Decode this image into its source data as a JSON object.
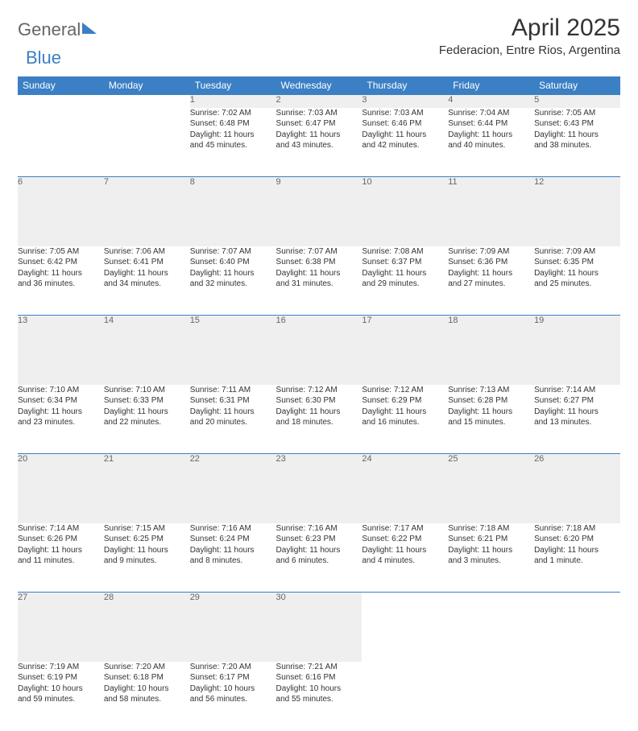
{
  "brand": {
    "part1": "General",
    "part2": "Blue"
  },
  "title": "April 2025",
  "location": "Federacion, Entre Rios, Argentina",
  "colors": {
    "header_bg": "#3b7fc4",
    "header_text": "#ffffff",
    "daynum_bg": "#efefef",
    "daynum_text": "#666666",
    "body_text": "#333333",
    "border": "#3b7fc4"
  },
  "fonts": {
    "title_size_pt": 22,
    "location_size_pt": 12,
    "dayhead_size_pt": 9,
    "cell_size_pt": 8
  },
  "day_headers": [
    "Sunday",
    "Monday",
    "Tuesday",
    "Wednesday",
    "Thursday",
    "Friday",
    "Saturday"
  ],
  "weeks": [
    [
      null,
      null,
      {
        "n": "1",
        "sr": "Sunrise: 7:02 AM",
        "ss": "Sunset: 6:48 PM",
        "dl1": "Daylight: 11 hours",
        "dl2": "and 45 minutes."
      },
      {
        "n": "2",
        "sr": "Sunrise: 7:03 AM",
        "ss": "Sunset: 6:47 PM",
        "dl1": "Daylight: 11 hours",
        "dl2": "and 43 minutes."
      },
      {
        "n": "3",
        "sr": "Sunrise: 7:03 AM",
        "ss": "Sunset: 6:46 PM",
        "dl1": "Daylight: 11 hours",
        "dl2": "and 42 minutes."
      },
      {
        "n": "4",
        "sr": "Sunrise: 7:04 AM",
        "ss": "Sunset: 6:44 PM",
        "dl1": "Daylight: 11 hours",
        "dl2": "and 40 minutes."
      },
      {
        "n": "5",
        "sr": "Sunrise: 7:05 AM",
        "ss": "Sunset: 6:43 PM",
        "dl1": "Daylight: 11 hours",
        "dl2": "and 38 minutes."
      }
    ],
    [
      {
        "n": "6",
        "sr": "Sunrise: 7:05 AM",
        "ss": "Sunset: 6:42 PM",
        "dl1": "Daylight: 11 hours",
        "dl2": "and 36 minutes."
      },
      {
        "n": "7",
        "sr": "Sunrise: 7:06 AM",
        "ss": "Sunset: 6:41 PM",
        "dl1": "Daylight: 11 hours",
        "dl2": "and 34 minutes."
      },
      {
        "n": "8",
        "sr": "Sunrise: 7:07 AM",
        "ss": "Sunset: 6:40 PM",
        "dl1": "Daylight: 11 hours",
        "dl2": "and 32 minutes."
      },
      {
        "n": "9",
        "sr": "Sunrise: 7:07 AM",
        "ss": "Sunset: 6:38 PM",
        "dl1": "Daylight: 11 hours",
        "dl2": "and 31 minutes."
      },
      {
        "n": "10",
        "sr": "Sunrise: 7:08 AM",
        "ss": "Sunset: 6:37 PM",
        "dl1": "Daylight: 11 hours",
        "dl2": "and 29 minutes."
      },
      {
        "n": "11",
        "sr": "Sunrise: 7:09 AM",
        "ss": "Sunset: 6:36 PM",
        "dl1": "Daylight: 11 hours",
        "dl2": "and 27 minutes."
      },
      {
        "n": "12",
        "sr": "Sunrise: 7:09 AM",
        "ss": "Sunset: 6:35 PM",
        "dl1": "Daylight: 11 hours",
        "dl2": "and 25 minutes."
      }
    ],
    [
      {
        "n": "13",
        "sr": "Sunrise: 7:10 AM",
        "ss": "Sunset: 6:34 PM",
        "dl1": "Daylight: 11 hours",
        "dl2": "and 23 minutes."
      },
      {
        "n": "14",
        "sr": "Sunrise: 7:10 AM",
        "ss": "Sunset: 6:33 PM",
        "dl1": "Daylight: 11 hours",
        "dl2": "and 22 minutes."
      },
      {
        "n": "15",
        "sr": "Sunrise: 7:11 AM",
        "ss": "Sunset: 6:31 PM",
        "dl1": "Daylight: 11 hours",
        "dl2": "and 20 minutes."
      },
      {
        "n": "16",
        "sr": "Sunrise: 7:12 AM",
        "ss": "Sunset: 6:30 PM",
        "dl1": "Daylight: 11 hours",
        "dl2": "and 18 minutes."
      },
      {
        "n": "17",
        "sr": "Sunrise: 7:12 AM",
        "ss": "Sunset: 6:29 PM",
        "dl1": "Daylight: 11 hours",
        "dl2": "and 16 minutes."
      },
      {
        "n": "18",
        "sr": "Sunrise: 7:13 AM",
        "ss": "Sunset: 6:28 PM",
        "dl1": "Daylight: 11 hours",
        "dl2": "and 15 minutes."
      },
      {
        "n": "19",
        "sr": "Sunrise: 7:14 AM",
        "ss": "Sunset: 6:27 PM",
        "dl1": "Daylight: 11 hours",
        "dl2": "and 13 minutes."
      }
    ],
    [
      {
        "n": "20",
        "sr": "Sunrise: 7:14 AM",
        "ss": "Sunset: 6:26 PM",
        "dl1": "Daylight: 11 hours",
        "dl2": "and 11 minutes."
      },
      {
        "n": "21",
        "sr": "Sunrise: 7:15 AM",
        "ss": "Sunset: 6:25 PM",
        "dl1": "Daylight: 11 hours",
        "dl2": "and 9 minutes."
      },
      {
        "n": "22",
        "sr": "Sunrise: 7:16 AM",
        "ss": "Sunset: 6:24 PM",
        "dl1": "Daylight: 11 hours",
        "dl2": "and 8 minutes."
      },
      {
        "n": "23",
        "sr": "Sunrise: 7:16 AM",
        "ss": "Sunset: 6:23 PM",
        "dl1": "Daylight: 11 hours",
        "dl2": "and 6 minutes."
      },
      {
        "n": "24",
        "sr": "Sunrise: 7:17 AM",
        "ss": "Sunset: 6:22 PM",
        "dl1": "Daylight: 11 hours",
        "dl2": "and 4 minutes."
      },
      {
        "n": "25",
        "sr": "Sunrise: 7:18 AM",
        "ss": "Sunset: 6:21 PM",
        "dl1": "Daylight: 11 hours",
        "dl2": "and 3 minutes."
      },
      {
        "n": "26",
        "sr": "Sunrise: 7:18 AM",
        "ss": "Sunset: 6:20 PM",
        "dl1": "Daylight: 11 hours",
        "dl2": "and 1 minute."
      }
    ],
    [
      {
        "n": "27",
        "sr": "Sunrise: 7:19 AM",
        "ss": "Sunset: 6:19 PM",
        "dl1": "Daylight: 10 hours",
        "dl2": "and 59 minutes."
      },
      {
        "n": "28",
        "sr": "Sunrise: 7:20 AM",
        "ss": "Sunset: 6:18 PM",
        "dl1": "Daylight: 10 hours",
        "dl2": "and 58 minutes."
      },
      {
        "n": "29",
        "sr": "Sunrise: 7:20 AM",
        "ss": "Sunset: 6:17 PM",
        "dl1": "Daylight: 10 hours",
        "dl2": "and 56 minutes."
      },
      {
        "n": "30",
        "sr": "Sunrise: 7:21 AM",
        "ss": "Sunset: 6:16 PM",
        "dl1": "Daylight: 10 hours",
        "dl2": "and 55 minutes."
      },
      null,
      null,
      null
    ]
  ]
}
